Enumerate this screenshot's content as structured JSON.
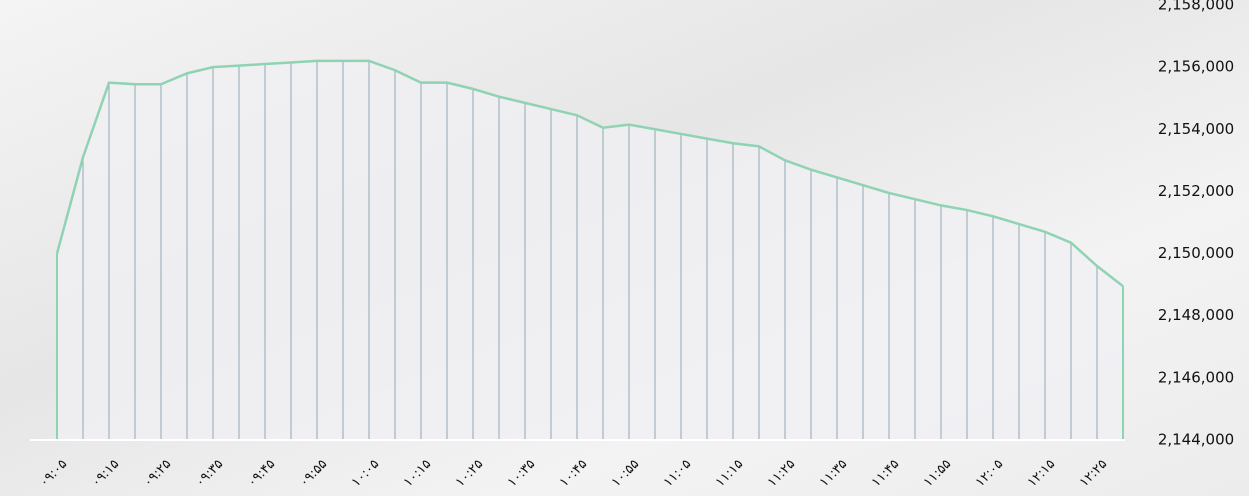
{
  "chart_data": {
    "type": "area",
    "categories": [
      "۰۹:۰۵",
      null,
      "۰۹:۱۵",
      null,
      "۰۹:۲۵",
      null,
      "۰۹:۳۵",
      null,
      "۰۹:۴۵",
      null,
      "۰۹:۵۵",
      null,
      "۱۰:۰۵",
      null,
      "۱۰:۱۵",
      null,
      "۱۰:۲۵",
      null,
      "۱۰:۳۵",
      null,
      "۱۰:۴۵",
      null,
      "۱۰:۵۵",
      null,
      "۱۱:۰۵",
      null,
      "۱۱:۱۵",
      null,
      "۱۱:۲۵",
      null,
      "۱۱:۳۵",
      null,
      "۱۱:۴۵",
      null,
      "۱۱:۵۵",
      null,
      "۱۲:۰۵",
      null,
      "۱۲:۱۵",
      null,
      "۱۲:۲۵",
      null
    ],
    "values": [
      2150000,
      2153100,
      2155500,
      2155450,
      2155450,
      2155800,
      2156000,
      2156050,
      2156100,
      2156150,
      2156200,
      2156200,
      2156200,
      2155900,
      2155500,
      2155500,
      2155300,
      2155050,
      2154850,
      2154650,
      2154450,
      2154050,
      2154150,
      2154000,
      2153850,
      2153700,
      2153550,
      2153450,
      2153000,
      2152700,
      2152450,
      2152200,
      2151950,
      2151750,
      2151550,
      2151400,
      2151200,
      2150950,
      2150700,
      2150350,
      2149600,
      2148950
    ],
    "color": "#8fd3b3",
    "ylim": [
      2144000,
      2158000
    ],
    "yticks": [
      {
        "value": 2144000,
        "label": "2,144,000"
      },
      {
        "value": 2146000,
        "label": "2,146,000"
      },
      {
        "value": 2148000,
        "label": "2,148,000"
      },
      {
        "value": 2150000,
        "label": "2,150,000"
      },
      {
        "value": 2152000,
        "label": "2,152,000"
      },
      {
        "value": 2154000,
        "label": "2,154,000"
      },
      {
        "value": 2156000,
        "label": "2,156,000"
      },
      {
        "value": 2158000,
        "label": "2,158,000"
      }
    ],
    "grid": false
  }
}
